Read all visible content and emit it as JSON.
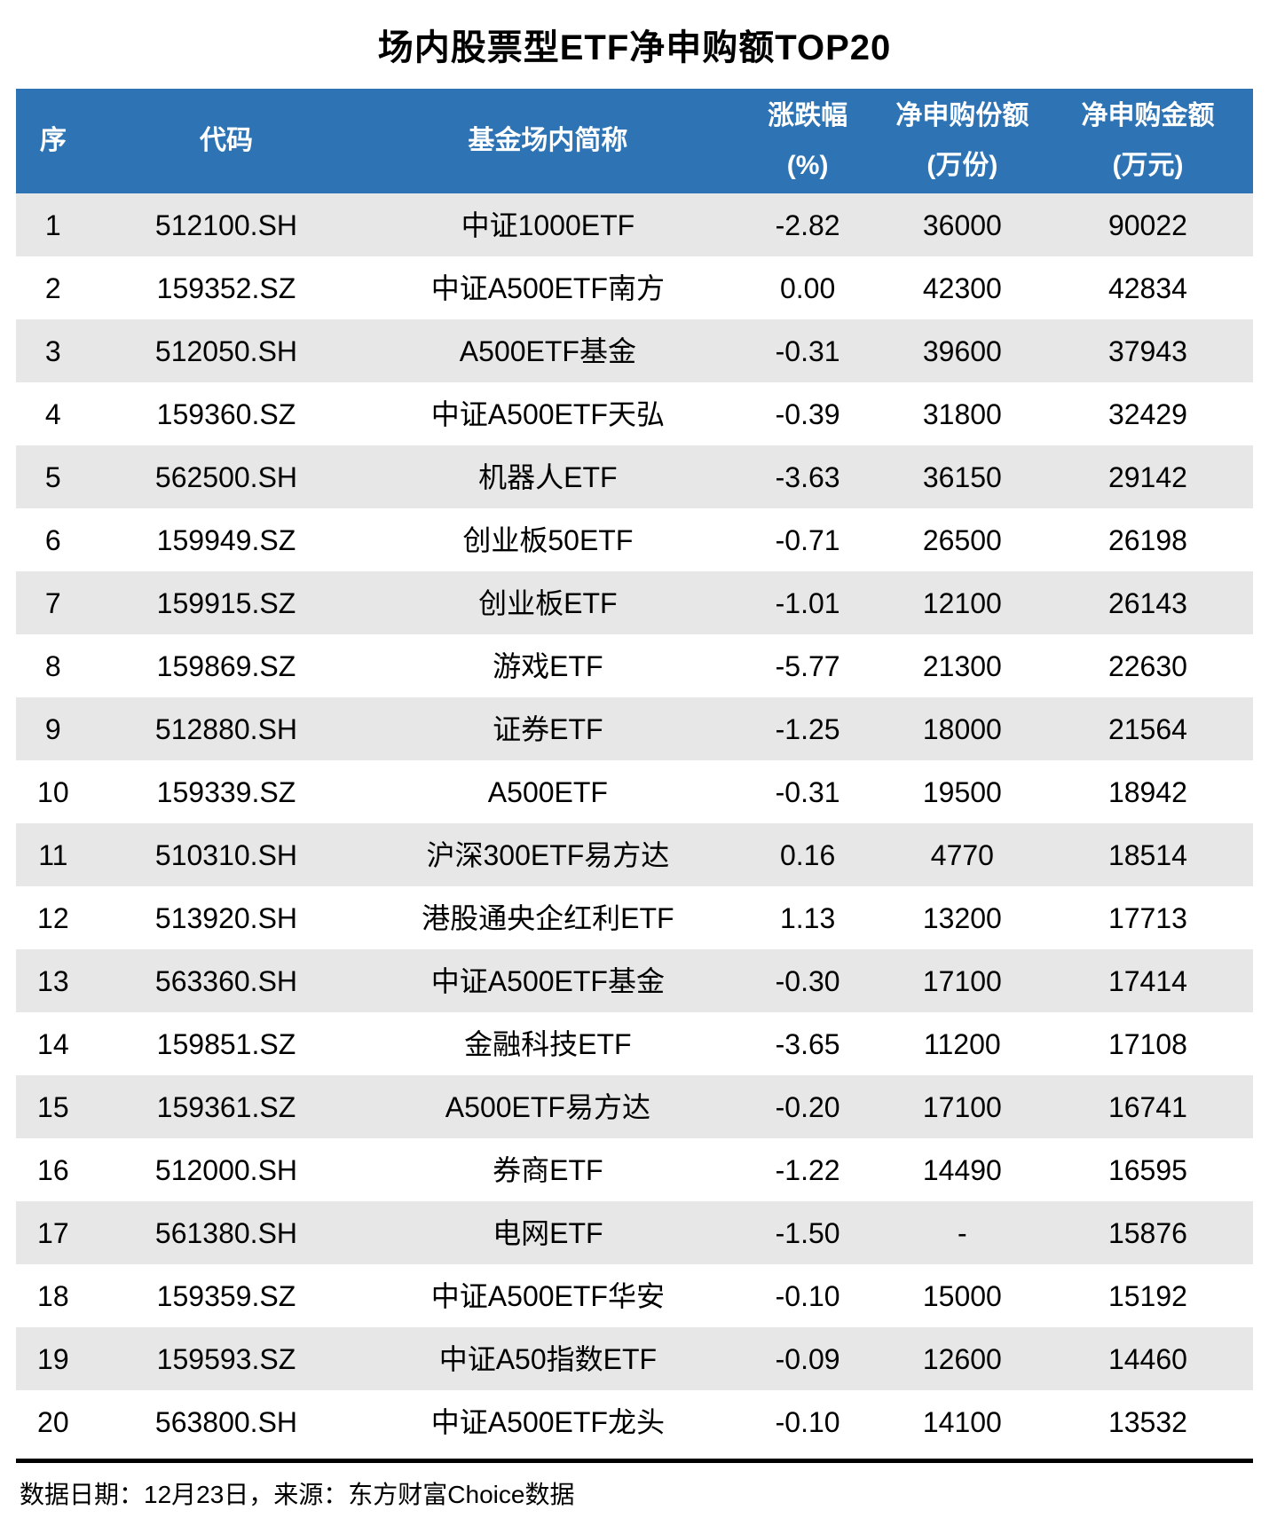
{
  "title": "场内股票型ETF净申购额TOP20",
  "colors": {
    "header_bg": "#2E74B5",
    "header_text": "#FFFFFF",
    "stripe_bg": "#E7E7E7",
    "body_text": "#000000",
    "footer_rule": "#000000"
  },
  "chart_data": {
    "type": "table",
    "title": "场内股票型ETF净申购额TOP20",
    "columns": [
      {
        "line1": "序",
        "line2": ""
      },
      {
        "line1": "代码",
        "line2": ""
      },
      {
        "line1": "基金场内简称",
        "line2": ""
      },
      {
        "line1": "涨跌幅",
        "line2": "(%)"
      },
      {
        "line1": "净申购份额",
        "line2": "(万份)"
      },
      {
        "line1": "净申购金额",
        "line2": "(万元)"
      }
    ],
    "rows": [
      [
        "1",
        "512100.SH",
        "中证1000ETF",
        "-2.82",
        "36000",
        "90022"
      ],
      [
        "2",
        "159352.SZ",
        "中证A500ETF南方",
        "0.00",
        "42300",
        "42834"
      ],
      [
        "3",
        "512050.SH",
        "A500ETF基金",
        "-0.31",
        "39600",
        "37943"
      ],
      [
        "4",
        "159360.SZ",
        "中证A500ETF天弘",
        "-0.39",
        "31800",
        "32429"
      ],
      [
        "5",
        "562500.SH",
        "机器人ETF",
        "-3.63",
        "36150",
        "29142"
      ],
      [
        "6",
        "159949.SZ",
        "创业板50ETF",
        "-0.71",
        "26500",
        "26198"
      ],
      [
        "7",
        "159915.SZ",
        "创业板ETF",
        "-1.01",
        "12100",
        "26143"
      ],
      [
        "8",
        "159869.SZ",
        "游戏ETF",
        "-5.77",
        "21300",
        "22630"
      ],
      [
        "9",
        "512880.SH",
        "证券ETF",
        "-1.25",
        "18000",
        "21564"
      ],
      [
        "10",
        "159339.SZ",
        "A500ETF",
        "-0.31",
        "19500",
        "18942"
      ],
      [
        "11",
        "510310.SH",
        "沪深300ETF易方达",
        "0.16",
        "4770",
        "18514"
      ],
      [
        "12",
        "513920.SH",
        "港股通央企红利ETF",
        "1.13",
        "13200",
        "17713"
      ],
      [
        "13",
        "563360.SH",
        "中证A500ETF基金",
        "-0.30",
        "17100",
        "17414"
      ],
      [
        "14",
        "159851.SZ",
        "金融科技ETF",
        "-3.65",
        "11200",
        "17108"
      ],
      [
        "15",
        "159361.SZ",
        "A500ETF易方达",
        "-0.20",
        "17100",
        "16741"
      ],
      [
        "16",
        "512000.SH",
        "券商ETF",
        "-1.22",
        "14490",
        "16595"
      ],
      [
        "17",
        "561380.SH",
        "电网ETF",
        "-1.50",
        "-",
        "15876"
      ],
      [
        "18",
        "159359.SZ",
        "中证A500ETF华安",
        "-0.10",
        "15000",
        "15192"
      ],
      [
        "19",
        "159593.SZ",
        "中证A50指数ETF",
        "-0.09",
        "12600",
        "14460"
      ],
      [
        "20",
        "563800.SH",
        "中证A500ETF龙头",
        "-0.10",
        "14100",
        "13532"
      ]
    ]
  },
  "footer": {
    "note": "数据日期：12月23日，来源：东方财富Choice数据"
  }
}
